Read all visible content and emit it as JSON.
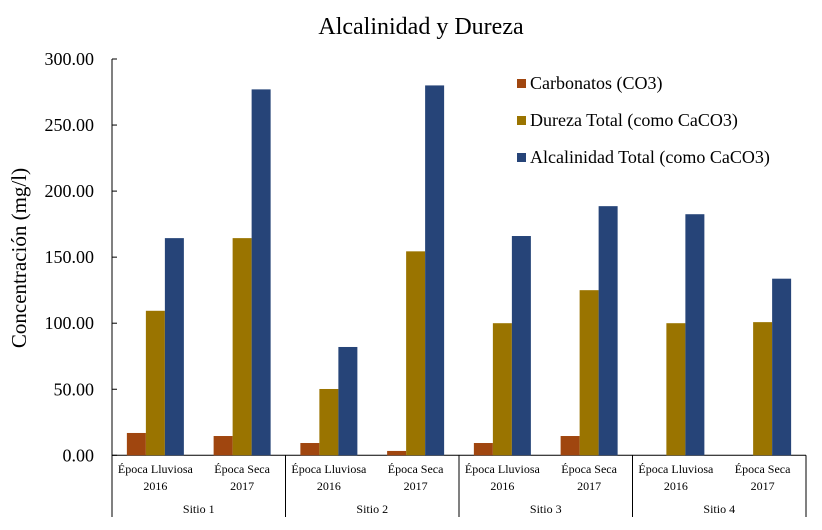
{
  "chart_data": {
    "type": "bar",
    "title": "Alcalinidad y Dureza",
    "ylabel": "Concentración (mg/l)",
    "xlabel": "",
    "ylim": [
      0,
      300
    ],
    "yticks": [
      "0.00",
      "50.00",
      "100.00",
      "150.00",
      "200.00",
      "250.00",
      "300.00"
    ],
    "grid": false,
    "legend_position": "top-right",
    "groups": [
      {
        "label": "Sitio 1",
        "categories": [
          [
            "Época Lluviosa",
            "2016"
          ],
          [
            "Época Seca",
            "2017"
          ]
        ]
      },
      {
        "label": "Sitio 2",
        "categories": [
          [
            "Época Lluviosa",
            "2016"
          ],
          [
            "Época Seca",
            "2017"
          ]
        ]
      },
      {
        "label": "Sitio 3",
        "categories": [
          [
            "Época Lluviosa",
            "2016"
          ],
          [
            "Época Seca",
            "2017"
          ]
        ]
      },
      {
        "label": "Sitio 4",
        "categories": [
          [
            "Época Lluviosa",
            "2016"
          ],
          [
            "Época Seca",
            "2017"
          ]
        ]
      }
    ],
    "series": [
      {
        "name": "Carbonatos (CO3)",
        "color": "#A0460F",
        "values": [
          16.9,
          14.6,
          9.3,
          3.3,
          9.3,
          14.6,
          0,
          0
        ]
      },
      {
        "name": "Dureza Total (como CaCO3)",
        "color": "#9A7400",
        "values": [
          109.4,
          164.4,
          50.2,
          154.4,
          100,
          125,
          100,
          100.8
        ]
      },
      {
        "name": "Alcalinidad Total  (como CaCO3)",
        "color": "#264478",
        "values": [
          164.4,
          277,
          82,
          280,
          166,
          188.6,
          182.5,
          133.7
        ]
      }
    ]
  }
}
